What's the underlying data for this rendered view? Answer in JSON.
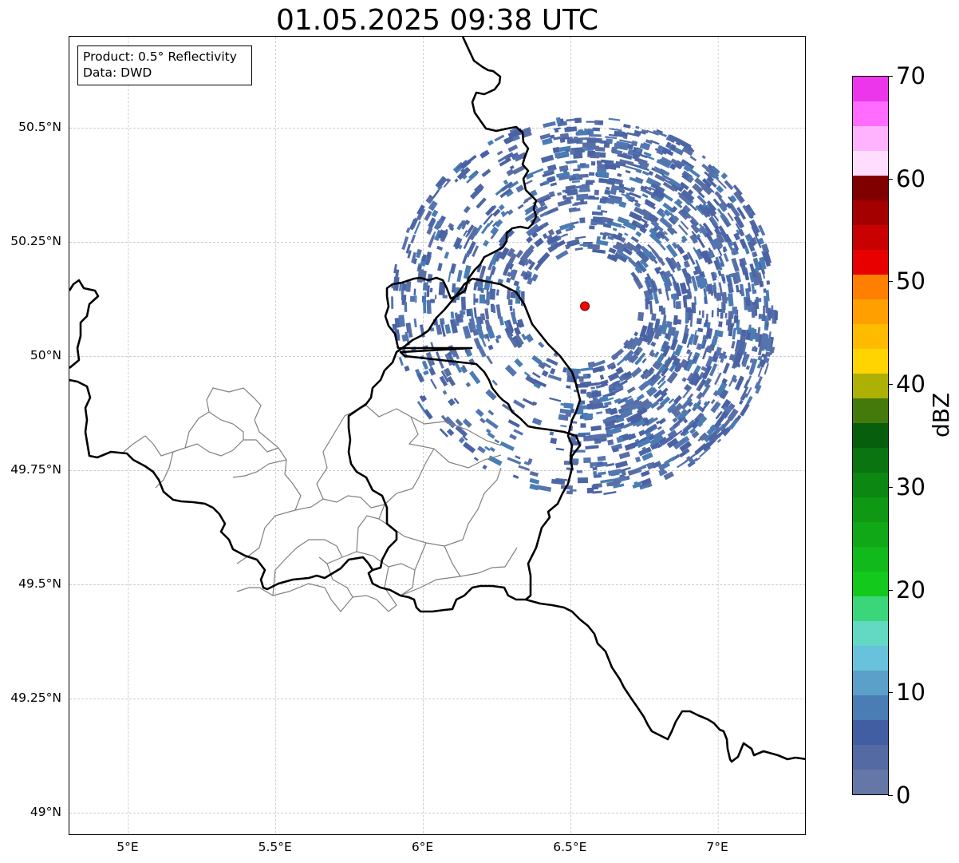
{
  "title": "01.05.2025 09:38 UTC",
  "info_box": {
    "product": "Product: 0.5° Reflectivity",
    "data": "Data: DWD"
  },
  "axes": {
    "lon_range": [
      4.8,
      7.3
    ],
    "lat_range": [
      48.95,
      50.7
    ],
    "x_ticks": [
      {
        "value": 5.0,
        "label": "5°E"
      },
      {
        "value": 5.5,
        "label": "5.5°E"
      },
      {
        "value": 6.0,
        "label": "6°E"
      },
      {
        "value": 6.5,
        "label": "6.5°E"
      },
      {
        "value": 7.0,
        "label": "7°E"
      }
    ],
    "y_ticks": [
      {
        "value": 49.0,
        "label": "49°N"
      },
      {
        "value": 49.25,
        "label": "49.25°N"
      },
      {
        "value": 49.5,
        "label": "49.5°N"
      },
      {
        "value": 49.75,
        "label": "49.75°N"
      },
      {
        "value": 50.0,
        "label": "50°N"
      },
      {
        "value": 50.25,
        "label": "50.25°N"
      },
      {
        "value": 50.5,
        "label": "50.5°N"
      }
    ],
    "grid": true
  },
  "radar_site": {
    "lon": 6.548,
    "lat": 50.11,
    "color": "#ff0000"
  },
  "echo_coverage": {
    "center_lon": 6.548,
    "center_lat": 50.11,
    "range_lon": 0.66,
    "range_lat": 0.42,
    "dominant_dbz": 4,
    "dominant_color": "#4d66a6"
  },
  "colorbar": {
    "label": "dBZ",
    "min": 0,
    "max": 70,
    "ticks": [
      {
        "value": 0,
        "label": "0"
      },
      {
        "value": 10,
        "label": "10"
      },
      {
        "value": 20,
        "label": "20"
      },
      {
        "value": 30,
        "label": "30"
      },
      {
        "value": 40,
        "label": "40"
      },
      {
        "value": 50,
        "label": "50"
      },
      {
        "value": 60,
        "label": "60"
      },
      {
        "value": 70,
        "label": "70"
      }
    ],
    "colors": [
      "#6577a7",
      "#536aa3",
      "#425ea2",
      "#4a7db4",
      "#5aa0c8",
      "#69c2dc",
      "#63d8c2",
      "#3cd67a",
      "#12c91c",
      "#11b91a",
      "#10a816",
      "#0f9814",
      "#0c8812",
      "#0a7410",
      "#075e0c",
      "#437a0b",
      "#adb005",
      "#ffd400",
      "#ffbb00",
      "#ff9f00",
      "#ff7f00",
      "#e80000",
      "#c80000",
      "#a40000",
      "#800000",
      "#ffddff",
      "#ffb3ff",
      "#ff6cff",
      "#ec36ec"
    ]
  }
}
